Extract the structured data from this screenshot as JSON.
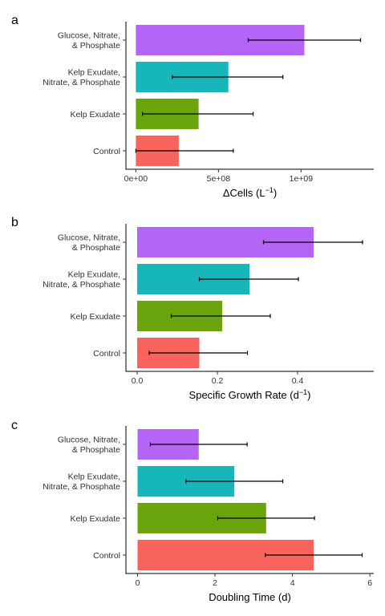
{
  "chart_data": [
    {
      "type": "bar",
      "orientation": "horizontal",
      "panel_label": "a",
      "categories": [
        "Control",
        "Kelp Exudate",
        "Kelp Exudate,\nNitrate, & Phosphate",
        "Glucose, Nitrate,\n& Phosphate"
      ],
      "values": [
        260000000.0,
        380000000.0,
        560000000.0,
        1020000000.0
      ],
      "error_low": [
        0,
        40000000.0,
        220000000.0,
        680000000.0
      ],
      "error_high": [
        590000000.0,
        710000000.0,
        890000000.0,
        1360000000.0
      ],
      "colors": [
        "#F8635C",
        "#6BA50E",
        "#17B6BB",
        "#B565F5"
      ],
      "xlabel_main": "ΔCells (L",
      "xlabel_sup": "−1",
      "xlabel_end": ")",
      "xlim": [
        -60000000.0,
        1440000000.0
      ],
      "xticks": [
        0,
        500000000.0,
        1000000000.0
      ],
      "xtick_labels": [
        "0e+00",
        "5e+08",
        "1e+09"
      ],
      "grid": false
    },
    {
      "type": "bar",
      "orientation": "horizontal",
      "panel_label": "b",
      "categories": [
        "Control",
        "Kelp Exudate",
        "Kelp Exudate,\nNitrate, & Phosphate",
        "Glucose, Nitrate,\n& Phosphate"
      ],
      "values": [
        0.155,
        0.212,
        0.28,
        0.44
      ],
      "error_low": [
        0.03,
        0.085,
        0.155,
        0.315
      ],
      "error_high": [
        0.275,
        0.332,
        0.402,
        0.562
      ],
      "colors": [
        "#F8635C",
        "#6BA50E",
        "#17B6BB",
        "#B565F5"
      ],
      "xlabel_main": "Specific Growth Rate (d",
      "xlabel_sup": "−1",
      "xlabel_end": ")",
      "xlim": [
        -0.028,
        0.59
      ],
      "xticks": [
        0,
        0.2,
        0.4
      ],
      "xtick_labels": [
        "0.0",
        "0.2",
        "0.4"
      ],
      "grid": false
    },
    {
      "type": "bar",
      "orientation": "horizontal",
      "panel_label": "c",
      "categories": [
        "Control",
        "Kelp Exudate",
        "Kelp Exudate,\nNitrate, & Phosphate",
        "Glucose, Nitrate,\n& Phosphate"
      ],
      "values": [
        4.55,
        3.32,
        2.5,
        1.58
      ],
      "error_low": [
        3.3,
        2.07,
        1.25,
        0.33
      ],
      "error_high": [
        5.8,
        4.57,
        3.75,
        2.83
      ],
      "colors": [
        "#F8635C",
        "#6BA50E",
        "#17B6BB",
        "#B565F5"
      ],
      "xlabel_main": "Doubling Time (d)",
      "xlabel_sup": "",
      "xlabel_end": "",
      "xlim": [
        -0.3,
        6.1
      ],
      "xticks": [
        0,
        2,
        4,
        6
      ],
      "xtick_labels": [
        "0",
        "2",
        "4",
        "6"
      ],
      "grid": false
    }
  ]
}
